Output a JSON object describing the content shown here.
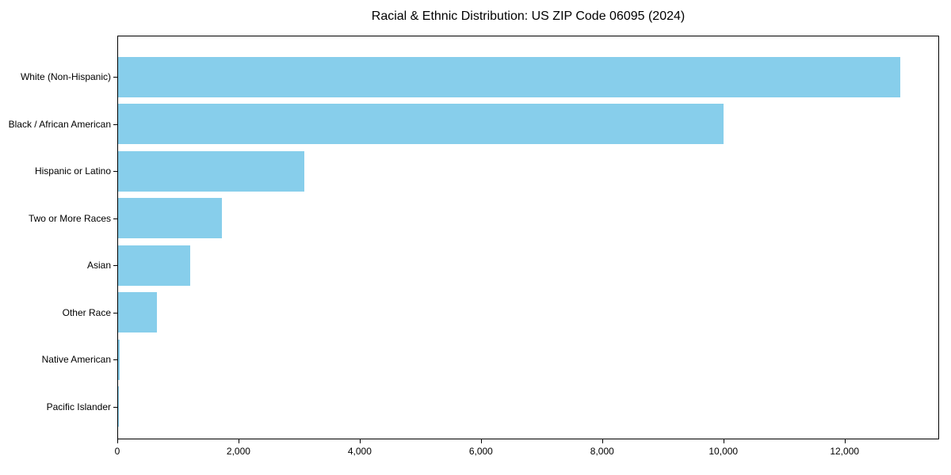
{
  "chart_data": {
    "type": "bar",
    "orientation": "horizontal",
    "title": "Racial & Ethnic Distribution: US ZIP Code 06095 (2024)",
    "categories": [
      "White (Non-Hispanic)",
      "Black / African American",
      "Hispanic or Latino",
      "Two or More Races",
      "Asian",
      "Other Race",
      "Native American",
      "Pacific Islander"
    ],
    "values": [
      12920,
      10000,
      3080,
      1730,
      1200,
      650,
      45,
      25
    ],
    "bar_color": "#87CEEB",
    "frame_color": "#000000",
    "text_color": "#000000",
    "xlabel": "",
    "ylabel": "",
    "xlim": [
      0,
      13560
    ],
    "x_ticks": [
      0,
      2000,
      4000,
      6000,
      8000,
      10000,
      12000
    ],
    "x_tick_labels": [
      "0",
      "2,000",
      "4,000",
      "6,000",
      "8,000",
      "10,000",
      "12,000"
    ],
    "grid": false,
    "legend": null
  }
}
